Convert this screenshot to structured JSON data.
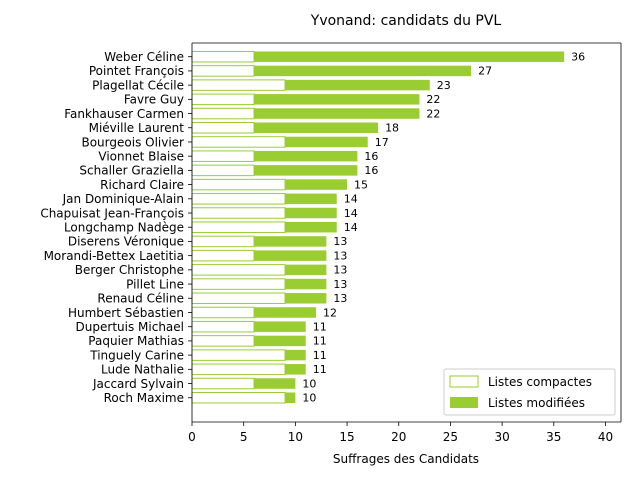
{
  "chart_data": {
    "type": "bar",
    "orientation": "horizontal",
    "stacked": true,
    "title": "Yvonand: candidats du PVL",
    "xlabel": "Suffrages des Candidats",
    "ylabel": "",
    "xlim": [
      0,
      41.5
    ],
    "x_ticks": [
      0,
      5,
      10,
      15,
      20,
      25,
      30,
      35,
      40
    ],
    "grid": false,
    "legend_position": "bottom-right",
    "colors": {
      "accent": "#9acd32",
      "compact_fill": "#ffffff",
      "edge": "#9acd32"
    },
    "categories": [
      "Weber Céline",
      "Pointet François",
      "Plagellat Cécile",
      "Favre Guy",
      "Fankhauser Carmen",
      "Miéville Laurent",
      "Bourgeois Olivier",
      "Vionnet Blaise",
      "Schaller Graziella",
      "Richard Claire",
      "Jan Dominique-Alain",
      "Chapuisat Jean-François",
      "Longchamp Nadège",
      "Diserens Véronique",
      "Morandi-Bettex Laetitia",
      "Berger Christophe",
      "Pillet Line",
      "Renaud Céline",
      "Humbert Sébastien",
      "Dupertuis Michael",
      "Paquier Mathias",
      "Tinguely Carine",
      "Lude Nathalie",
      "Jaccard Sylvain",
      "Roch Maxime"
    ],
    "series": [
      {
        "name": "Listes compactes",
        "style": "outline",
        "values": [
          6,
          6,
          9,
          6,
          6,
          6,
          9,
          6,
          6,
          9,
          9,
          9,
          9,
          6,
          6,
          9,
          9,
          9,
          6,
          6,
          6,
          9,
          9,
          6,
          9
        ]
      },
      {
        "name": "Listes modifiées",
        "style": "filled",
        "values": [
          30,
          21,
          14,
          16,
          16,
          12,
          8,
          10,
          10,
          6,
          5,
          5,
          5,
          7,
          7,
          4,
          4,
          4,
          6,
          5,
          5,
          2,
          2,
          4,
          1
        ]
      }
    ],
    "totals": [
      36,
      27,
      23,
      22,
      22,
      18,
      17,
      16,
      16,
      15,
      14,
      14,
      14,
      13,
      13,
      13,
      13,
      13,
      12,
      11,
      11,
      11,
      11,
      10,
      10
    ]
  }
}
